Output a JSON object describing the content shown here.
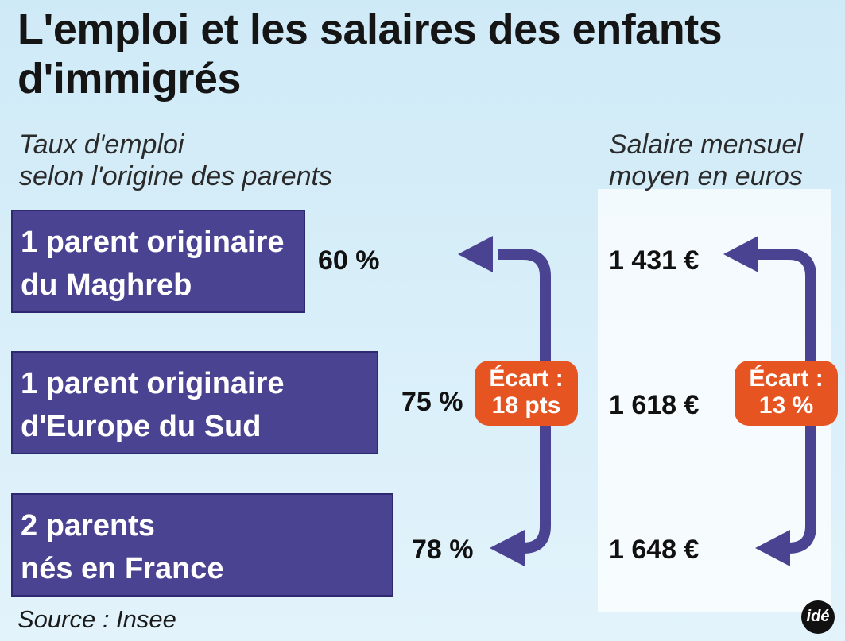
{
  "title": "L'emploi et les salaires des enfants d'immigrés",
  "chart_data": {
    "type": "bar",
    "title": "L'emploi et les salaires des enfants d'immigrés",
    "categories": [
      [
        "1 parent originaire",
        "du Maghreb"
      ],
      [
        "1 parent originaire",
        "d'Europe du Sud"
      ],
      [
        "2 parents",
        "nés en France"
      ]
    ],
    "series": [
      {
        "name": "Taux d'emploi selon l'origine des parents",
        "values": [
          60,
          75,
          78
        ],
        "labels": [
          "60 %",
          "75 %",
          "78 %"
        ]
      },
      {
        "name": "Salaire mensuel moyen en euros",
        "values": [
          1431,
          1618,
          1648
        ],
        "labels": [
          "1 431 €",
          "1 618 €",
          "1 648 €"
        ]
      }
    ],
    "employment_subtitle": [
      "Taux d'emploi",
      "selon l'origine des parents"
    ],
    "salary_subtitle": [
      "Salaire mensuel",
      "moyen en euros"
    ],
    "annotations": [
      {
        "lines": [
          "Écart :",
          "18 pts"
        ],
        "color": "#e65422"
      },
      {
        "lines": [
          "Écart :",
          "13 %"
        ],
        "color": "#e65422"
      }
    ],
    "bar_color": "#4a4391",
    "arrow_color": "#4a4391"
  },
  "source": "Source : Insee",
  "logo": "idé"
}
